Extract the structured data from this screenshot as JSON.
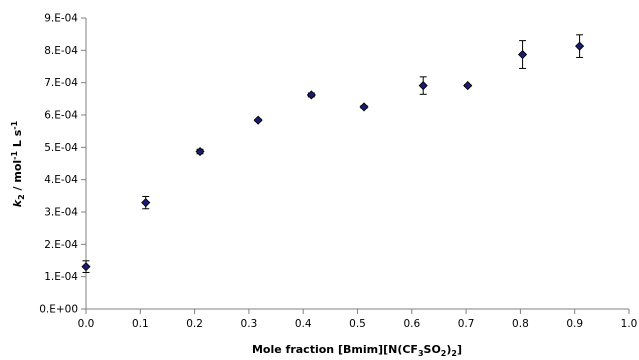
{
  "chart_data": {
    "type": "scatter",
    "title": "",
    "xlabel": {
      "parts": [
        {
          "text": "Mole fraction [Bmim][N(CF"
        },
        {
          "text": "3",
          "sub": true
        },
        {
          "text": "SO"
        },
        {
          "text": "2",
          "sub": true
        },
        {
          "text": ")"
        },
        {
          "text": "2",
          "sub": true
        },
        {
          "text": "]"
        }
      ]
    },
    "ylabel": {
      "parts": [
        {
          "text": "k",
          "italic": true
        },
        {
          "text": "2",
          "sub": true
        },
        {
          "text": " / mol"
        },
        {
          "text": "-1",
          "sup": true
        },
        {
          "text": " L s"
        },
        {
          "text": "-1",
          "sup": true
        }
      ]
    },
    "xlim": [
      0,
      1.0
    ],
    "ylim": [
      0,
      0.0009
    ],
    "x_ticks": [
      {
        "value": 0.0,
        "label": "0.0"
      },
      {
        "value": 0.1,
        "label": "0.1"
      },
      {
        "value": 0.2,
        "label": "0.2"
      },
      {
        "value": 0.3,
        "label": "0.3"
      },
      {
        "value": 0.4,
        "label": "0.4"
      },
      {
        "value": 0.5,
        "label": "0.5"
      },
      {
        "value": 0.6,
        "label": "0.6"
      },
      {
        "value": 0.7,
        "label": "0.7"
      },
      {
        "value": 0.8,
        "label": "0.8"
      },
      {
        "value": 0.9,
        "label": "0.9"
      },
      {
        "value": 1.0,
        "label": "1.0"
      }
    ],
    "y_ticks": [
      {
        "value": 0.0,
        "label": "0.E+00"
      },
      {
        "value": 0.0001,
        "label": "1.E-04"
      },
      {
        "value": 0.0002,
        "label": "2.E-04"
      },
      {
        "value": 0.0003,
        "label": "3.E-04"
      },
      {
        "value": 0.0004,
        "label": "4.E-04"
      },
      {
        "value": 0.0005,
        "label": "5.E-04"
      },
      {
        "value": 0.0006,
        "label": "6.E-04"
      },
      {
        "value": 0.0007,
        "label": "7.E-04"
      },
      {
        "value": 0.0008,
        "label": "8.E-04"
      },
      {
        "value": 0.0009,
        "label": "9.E-04"
      }
    ],
    "grid": false,
    "legend": "none",
    "marker": {
      "shape": "diamond",
      "color": "#1a1a6e",
      "edge_color": "#000000"
    },
    "series": [
      {
        "points": [
          {
            "x": 0.0,
            "y": 0.000131,
            "err": 1.8e-05
          },
          {
            "x": 0.11,
            "y": 0.000329,
            "err": 1.9e-05
          },
          {
            "x": 0.21,
            "y": 0.000487,
            "err": 7e-06
          },
          {
            "x": 0.317,
            "y": 0.000584,
            "err": 3e-06
          },
          {
            "x": 0.415,
            "y": 0.000662,
            "err": 6e-06
          },
          {
            "x": 0.512,
            "y": 0.000625,
            "err": 4e-06
          },
          {
            "x": 0.621,
            "y": 0.000691,
            "err": 2.7e-05
          },
          {
            "x": 0.703,
            "y": 0.000691,
            "err": 3e-06
          },
          {
            "x": 0.804,
            "y": 0.000787,
            "err": 4.3e-05
          },
          {
            "x": 0.909,
            "y": 0.000813,
            "err": 3.5e-05
          }
        ]
      }
    ]
  }
}
